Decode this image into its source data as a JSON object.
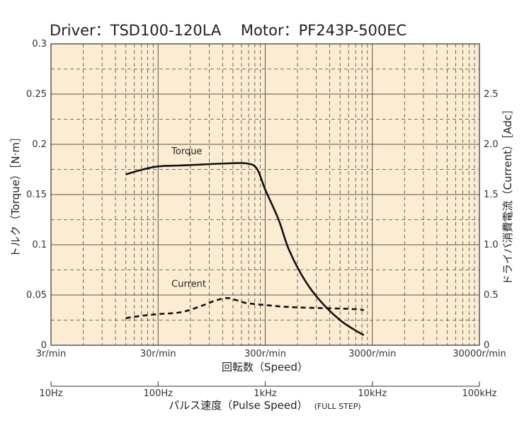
{
  "chart_data": {
    "type": "line",
    "title": "Driver：TSD100-120LA　 Motor：PF243P-500EC",
    "x_scale": "log",
    "x_range_rpm": [
      3,
      30000
    ],
    "x_ticks": [
      "3r/min",
      "30r/min",
      "300r/min",
      "3000r/min",
      "30000r/min"
    ],
    "xlabel": "回転数（Speed）",
    "y_left": {
      "label": "トルク（Torque）［N·m］",
      "range": [
        0,
        0.3
      ],
      "ticks": [
        "0",
        "0.05",
        "0.1",
        "0.15",
        "0.2",
        "0.25",
        "0.3"
      ]
    },
    "y_right": {
      "label": "ドライバ消費電流（Current）［Adc］",
      "range": [
        0,
        3.0
      ],
      "ticks": [
        "0",
        "0.5",
        "1.0",
        "1.5",
        "2.0",
        "2.5"
      ]
    },
    "pulse_axis": {
      "ticks": [
        "10Hz",
        "100Hz",
        "1kHz",
        "10kHz",
        "100kHz"
      ],
      "label_main": "パルス速度（Pulse Speed）",
      "label_sub": "(FULL STEP)"
    },
    "grid": true,
    "series": [
      {
        "name": "Torque",
        "axis": "left",
        "style": "solid",
        "x": [
          15,
          20,
          30,
          50,
          80,
          130,
          200,
          250,
          300,
          400,
          500,
          700,
          1000,
          1500,
          2000,
          2500
        ],
        "y": [
          0.17,
          0.174,
          0.178,
          0.179,
          0.18,
          0.181,
          0.181,
          0.176,
          0.155,
          0.125,
          0.095,
          0.065,
          0.043,
          0.025,
          0.016,
          0.01
        ]
      },
      {
        "name": "Current",
        "axis": "right",
        "style": "dashed",
        "x": [
          15,
          20,
          30,
          50,
          80,
          100,
          130,
          160,
          200,
          300,
          500,
          1000,
          2000,
          2500
        ],
        "y": [
          0.27,
          0.29,
          0.31,
          0.33,
          0.4,
          0.44,
          0.47,
          0.45,
          0.42,
          0.4,
          0.38,
          0.37,
          0.36,
          0.35
        ]
      }
    ]
  }
}
